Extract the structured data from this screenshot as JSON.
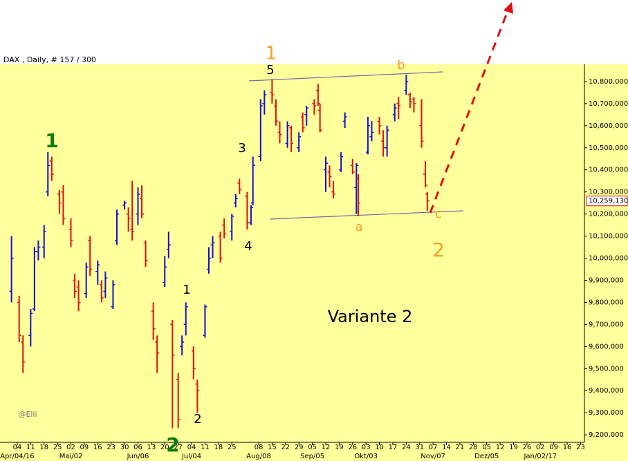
{
  "chart_data": {
    "type": "ohlc",
    "title": "DAX , Daily, # 157 / 300",
    "up_color": "#1010d0",
    "down_color": "#e01010",
    "x": [
      "2016-04-01",
      "2016-04-05",
      "2016-04-07",
      "2016-04-11",
      "2016-04-13",
      "2016-04-15",
      "2016-04-18",
      "2016-04-20",
      "2016-04-22",
      "2016-04-26",
      "2016-04-28",
      "2016-05-02",
      "2016-05-04",
      "2016-05-06",
      "2016-05-10",
      "2016-05-12",
      "2016-05-16",
      "2016-05-18",
      "2016-05-20",
      "2016-05-24",
      "2016-05-26",
      "2016-05-30",
      "2016-06-01",
      "2016-06-03",
      "2016-06-06",
      "2016-06-08",
      "2016-06-10",
      "2016-06-14",
      "2016-06-16",
      "2016-06-20",
      "2016-06-22",
      "2016-06-24",
      "2016-06-27",
      "2016-06-29",
      "2016-07-01",
      "2016-07-05",
      "2016-07-07",
      "2016-07-11",
      "2016-07-13",
      "2016-07-15",
      "2016-07-19",
      "2016-07-21",
      "2016-07-25",
      "2016-07-27",
      "2016-07-29",
      "2016-08-02",
      "2016-08-04",
      "2016-08-05",
      "2016-08-09",
      "2016-08-11",
      "2016-08-15",
      "2016-08-17",
      "2016-08-19",
      "2016-08-23",
      "2016-08-25",
      "2016-08-29",
      "2016-08-31",
      "2016-09-02",
      "2016-09-06",
      "2016-09-08",
      "2016-09-09",
      "2016-09-12",
      "2016-09-14",
      "2016-09-16",
      "2016-09-20",
      "2016-09-22",
      "2016-09-26",
      "2016-09-28",
      "2016-09-29",
      "2016-10-04",
      "2016-10-06",
      "2016-10-10",
      "2016-10-12",
      "2016-10-14",
      "2016-10-18",
      "2016-10-20",
      "2016-10-24",
      "2016-10-26",
      "2016-10-28",
      "2016-11-01",
      "2016-11-03",
      "2016-11-04"
    ],
    "open": [
      9850000,
      9800000,
      9620000,
      9650000,
      9770000,
      10030000,
      10050000,
      10300000,
      10440000,
      10290000,
      10300000,
      10130000,
      9900000,
      9870000,
      9840000,
      10080000,
      9940000,
      9880000,
      9850000,
      9780000,
      10080000,
      10240000,
      10200000,
      10130000,
      10200000,
      10270000,
      10070000,
      9760000,
      9620000,
      9890000,
      10040000,
      9700000,
      9450000,
      9600000,
      9700000,
      9580000,
      9430000,
      9650000,
      9950000,
      10060000,
      10100000,
      10150000,
      10120000,
      10250000,
      10340000,
      10280000,
      10160000,
      10250000,
      10460000,
      10700000,
      10750000,
      10690000,
      10570000,
      10520000,
      10590000,
      10500000,
      10640000,
      10650000,
      10700000,
      10760000,
      10670000,
      10400000,
      10390000,
      10300000,
      10400000,
      10620000,
      10420000,
      10320000,
      10360000,
      10480000,
      10550000,
      10620000,
      10530000,
      10500000,
      10650000,
      10700000,
      10760000,
      10740000,
      10720000,
      10600000,
      10380000,
      10290000
    ],
    "high": [
      10100000,
      9830000,
      9650000,
      9770000,
      10050000,
      10080000,
      10150000,
      10480000,
      10460000,
      10310000,
      10330000,
      10180000,
      9930000,
      9900000,
      9980000,
      10100000,
      9990000,
      9900000,
      9940000,
      9900000,
      10220000,
      10260000,
      10230000,
      10350000,
      10320000,
      10330000,
      10080000,
      9800000,
      9650000,
      10010000,
      10120000,
      9720000,
      9480000,
      9650000,
      9800000,
      9600000,
      9450000,
      9790000,
      10050000,
      10100000,
      10120000,
      10180000,
      10200000,
      10290000,
      10360000,
      10300000,
      10240000,
      10460000,
      10720000,
      10760000,
      10810000,
      10720000,
      10620000,
      10620000,
      10600000,
      10570000,
      10660000,
      10690000,
      10720000,
      10790000,
      10700000,
      10460000,
      10420000,
      10350000,
      10480000,
      10660000,
      10450000,
      10430000,
      10380000,
      10640000,
      10620000,
      10640000,
      10580000,
      10600000,
      10700000,
      10730000,
      10830000,
      10750000,
      10730000,
      10720000,
      10440000,
      10300000
    ],
    "low": [
      9800000,
      9620000,
      9480000,
      9600000,
      9760000,
      9990000,
      10000000,
      10280000,
      10350000,
      10200000,
      10150000,
      10050000,
      9820000,
      9760000,
      9820000,
      9920000,
      9880000,
      9800000,
      9820000,
      9770000,
      10060000,
      10220000,
      10120000,
      10080000,
      10150000,
      10180000,
      9960000,
      9630000,
      9480000,
      9870000,
      10000000,
      9230000,
      9230000,
      9560000,
      9650000,
      9450000,
      9300000,
      9640000,
      9930000,
      10000000,
      9980000,
      10090000,
      10080000,
      10230000,
      10290000,
      10130000,
      10150000,
      10240000,
      10440000,
      10650000,
      10700000,
      10600000,
      10520000,
      10500000,
      10480000,
      10480000,
      10570000,
      10600000,
      10650000,
      10690000,
      10570000,
      10300000,
      10320000,
      10270000,
      10390000,
      10590000,
      10380000,
      10200000,
      10190000,
      10470000,
      10530000,
      10560000,
      10460000,
      10460000,
      10620000,
      10630000,
      10740000,
      10680000,
      10660000,
      10500000,
      10320000,
      10215000
    ],
    "close": [
      10000000,
      9650000,
      9530000,
      9750000,
      10030000,
      10050000,
      10120000,
      10420000,
      10380000,
      10250000,
      10180000,
      10080000,
      9850000,
      9800000,
      9960000,
      9950000,
      9970000,
      9820000,
      9910000,
      9880000,
      10200000,
      10250000,
      10180000,
      10120000,
      10290000,
      10200000,
      9990000,
      9680000,
      9570000,
      9960000,
      10060000,
      9560000,
      9270000,
      9620000,
      9780000,
      9500000,
      9400000,
      9780000,
      10000000,
      10070000,
      10000000,
      10110000,
      10190000,
      10270000,
      10310000,
      10160000,
      10230000,
      10420000,
      10690000,
      10740000,
      10740000,
      10620000,
      10560000,
      10600000,
      10520000,
      10550000,
      10590000,
      10680000,
      10690000,
      10700000,
      10580000,
      10430000,
      10370000,
      10290000,
      10460000,
      10640000,
      10390000,
      10420000,
      10250000,
      10600000,
      10570000,
      10600000,
      10500000,
      10580000,
      10680000,
      10690000,
      10800000,
      10710000,
      10700000,
      10530000,
      10330000,
      10259130
    ],
    "xlim": [
      "2016-03-26",
      "2017-01-25"
    ],
    "xticks": [
      {
        "value": "2016-04-04",
        "label": "04"
      },
      {
        "value": "2016-04-11",
        "label": "11"
      },
      {
        "value": "2016-04-18",
        "label": "18"
      },
      {
        "value": "2016-04-25",
        "label": "25"
      },
      {
        "value": "2016-05-02",
        "label": "02"
      },
      {
        "value": "2016-05-09",
        "label": "09"
      },
      {
        "value": "2016-05-16",
        "label": "16"
      },
      {
        "value": "2016-05-23",
        "label": "23"
      },
      {
        "value": "2016-05-30",
        "label": "30"
      },
      {
        "value": "2016-06-06",
        "label": "06"
      },
      {
        "value": "2016-06-13",
        "label": "13"
      },
      {
        "value": "2016-06-20",
        "label": "20"
      },
      {
        "value": "2016-06-27",
        "label": "27"
      },
      {
        "value": "2016-07-04",
        "label": "04"
      },
      {
        "value": "2016-07-11",
        "label": "11"
      },
      {
        "value": "2016-07-18",
        "label": "18"
      },
      {
        "value": "2016-07-25",
        "label": "25"
      },
      {
        "value": "2016-08-08",
        "label": "08"
      },
      {
        "value": "2016-08-15",
        "label": "15"
      },
      {
        "value": "2016-08-22",
        "label": "22"
      },
      {
        "value": "2016-08-29",
        "label": "29"
      },
      {
        "value": "2016-09-05",
        "label": "05"
      },
      {
        "value": "2016-09-12",
        "label": "12"
      },
      {
        "value": "2016-09-19",
        "label": "19"
      },
      {
        "value": "2016-09-26",
        "label": "26"
      },
      {
        "value": "2016-10-03",
        "label": "03"
      },
      {
        "value": "2016-10-10",
        "label": "10"
      },
      {
        "value": "2016-10-17",
        "label": "17"
      },
      {
        "value": "2016-10-24",
        "label": "24"
      },
      {
        "value": "2016-10-31",
        "label": "31"
      },
      {
        "value": "2016-11-07",
        "label": "07"
      },
      {
        "value": "2016-11-14",
        "label": "14"
      },
      {
        "value": "2016-11-21",
        "label": "21"
      },
      {
        "value": "2016-11-28",
        "label": "28"
      },
      {
        "value": "2016-12-05",
        "label": "05"
      },
      {
        "value": "2016-12-12",
        "label": "12"
      },
      {
        "value": "2016-12-19",
        "label": "19"
      },
      {
        "value": "2016-12-26",
        "label": "26"
      },
      {
        "value": "2017-01-02",
        "label": "02"
      },
      {
        "value": "2017-01-09",
        "label": "09"
      },
      {
        "value": "2017-01-16",
        "label": "16"
      },
      {
        "value": "2017-01-23",
        "label": "23"
      }
    ],
    "month_labels": [
      {
        "value": "2016-04-04",
        "label": "Apr/04/16"
      },
      {
        "value": "2016-05-02",
        "label": "Mai/02"
      },
      {
        "value": "2016-06-06",
        "label": "Jun/06"
      },
      {
        "value": "2016-07-04",
        "label": "Jul/04"
      },
      {
        "value": "2016-08-08",
        "label": "Aug/08"
      },
      {
        "value": "2016-09-05",
        "label": "Sep/05"
      },
      {
        "value": "2016-10-03",
        "label": "Okt/03"
      },
      {
        "value": "2016-11-07",
        "label": "Nov/07"
      },
      {
        "value": "2016-12-05",
        "label": "Dez/05"
      },
      {
        "value": "2017-01-02",
        "label": "Jan/02/17"
      }
    ],
    "ylim": [
      9166000,
      10878000
    ],
    "yticks": [
      {
        "value": 9200000,
        "label": "9,200,000"
      },
      {
        "value": 9300000,
        "label": "9,300,000"
      },
      {
        "value": 9400000,
        "label": "9,400,000"
      },
      {
        "value": 9500000,
        "label": "9,500,000"
      },
      {
        "value": 9600000,
        "label": "9,600,000"
      },
      {
        "value": 9700000,
        "label": "9,700,000"
      },
      {
        "value": 9800000,
        "label": "9,800,000"
      },
      {
        "value": 9900000,
        "label": "9,900,000"
      },
      {
        "value": 10000000,
        "label": "10,000,000"
      },
      {
        "value": 10100000,
        "label": "10,100,000"
      },
      {
        "value": 10200000,
        "label": "10,200,000"
      },
      {
        "value": 10300000,
        "label": "10,300,000"
      },
      {
        "value": 10400000,
        "label": "10,400,000"
      },
      {
        "value": 10500000,
        "label": "10,500,000"
      },
      {
        "value": 10600000,
        "label": "10,600,000"
      },
      {
        "value": 10700000,
        "label": "10,700,000"
      },
      {
        "value": 10800000,
        "label": "10,800,000"
      }
    ],
    "last_price": {
      "value": 10259130,
      "label": "10,259,130"
    },
    "annotations": [
      {
        "text": "1",
        "color": "#0f7a0f"
      },
      {
        "text": "1",
        "color": "#f5a020"
      },
      {
        "text": "5",
        "color": "#000000"
      },
      {
        "text": "3",
        "color": "#000000"
      },
      {
        "text": "4",
        "color": "#000000"
      },
      {
        "text": "1",
        "color": "#000000"
      },
      {
        "text": "2",
        "color": "#000000"
      },
      {
        "text": "2",
        "color": "#0f7a0f"
      },
      {
        "text": "a",
        "color": "#f5a020"
      },
      {
        "text": "b",
        "color": "#f5a020"
      },
      {
        "text": "c",
        "color": "#f5a020"
      },
      {
        "text": "2",
        "color": "#f5a020"
      },
      {
        "text": "Variante 2",
        "color": "#000000"
      },
      {
        "text": "@Elli",
        "color": "#777777"
      }
    ]
  }
}
